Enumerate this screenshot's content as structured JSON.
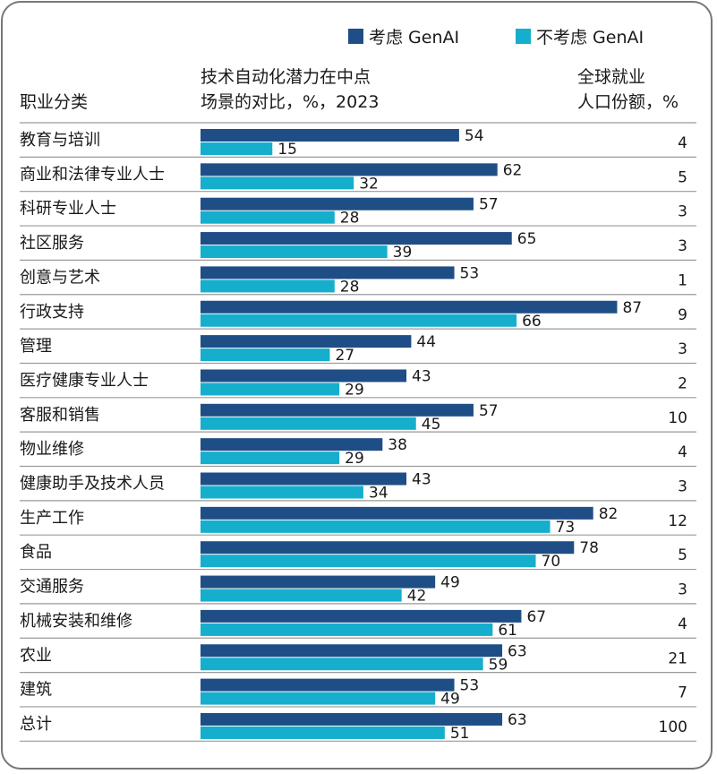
{
  "chart_data": {
    "type": "bar",
    "orientation": "horizontal",
    "legend": {
      "position": "top-right",
      "items": [
        {
          "label": "考虑 GenAI",
          "color": "#1f4e86"
        },
        {
          "label": "不考虑 GenAI",
          "color": "#16aecd"
        }
      ]
    },
    "headers": {
      "category": "职业分类",
      "bars_line1": "技术自动化潜力在中点",
      "bars_line2": "场景的对比，%，2023",
      "share_line1": "全球就业",
      "share_line2": "人口份额，%"
    },
    "categories": [
      "教育与培训",
      "商业和法律专业人士",
      "科研专业人士",
      "社区服务",
      "创意与艺术",
      "行政支持",
      "管理",
      "医疗健康专业人士",
      "客服和销售",
      "物业维修",
      "健康助手及技术人员",
      "生产工作",
      "食品",
      "交通服务",
      "机械安装和维修",
      "农业",
      "建筑",
      "总计"
    ],
    "series": [
      {
        "name": "考虑 GenAI",
        "color": "#1f4e86",
        "values": [
          54,
          62,
          57,
          65,
          53,
          87,
          44,
          43,
          57,
          38,
          43,
          82,
          78,
          49,
          67,
          63,
          53,
          63
        ]
      },
      {
        "name": "不考虑 GenAI",
        "color": "#16aecd",
        "values": [
          15,
          32,
          28,
          39,
          28,
          66,
          27,
          29,
          45,
          29,
          34,
          73,
          70,
          42,
          61,
          59,
          49,
          51
        ]
      }
    ],
    "employment_share": [
      4,
      5,
      3,
      3,
      1,
      9,
      3,
      2,
      10,
      4,
      3,
      12,
      5,
      3,
      4,
      21,
      7,
      100
    ],
    "xlim": [
      0,
      100
    ],
    "grid": false
  }
}
